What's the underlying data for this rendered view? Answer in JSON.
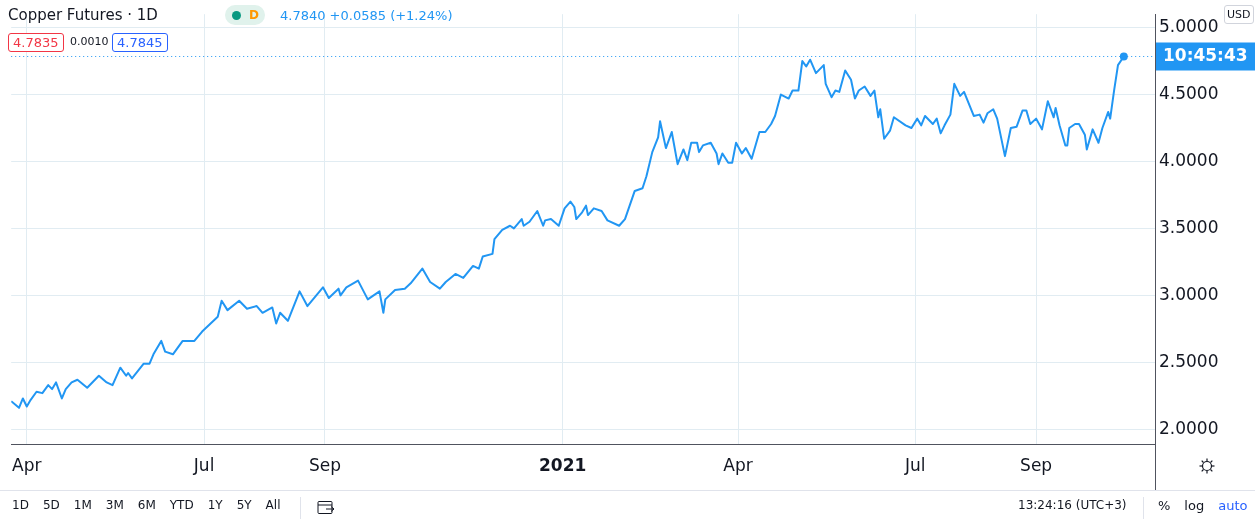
{
  "chart_data": {
    "type": "line",
    "title": "Copper Futures · 1D",
    "annotations": [
      "D",
      "4.7840 +0.0585 (+1.24%)",
      "4.7835",
      "0.0010",
      "4.7845",
      "USD",
      "13:24:16 (UTC+3)",
      "1D",
      "5D",
      "1M",
      "3M",
      "6M",
      "YTD",
      "1Y",
      "5Y",
      "All",
      "%",
      "log",
      "auto",
      "10:45:43"
    ],
    "xlim": [
      "2020-03-24",
      "2021-11-01"
    ],
    "xticks": [
      {
        "value": "2020-04-01",
        "label": "Apr"
      },
      {
        "value": "2020-07-01",
        "label": "Jul"
      },
      {
        "value": "2020-09-01",
        "label": "Sep"
      },
      {
        "value": "2021-01-01",
        "label": "2021"
      },
      {
        "value": "2021-04-01",
        "label": "Apr"
      },
      {
        "value": "2021-07-01",
        "label": "Jul"
      },
      {
        "value": "2021-09-01",
        "label": "Sep"
      }
    ],
    "ylim": [
      1.89,
      5.1
    ],
    "yticks": [
      {
        "value": 2,
        "label": "2.0000"
      },
      {
        "value": 2.5,
        "label": "2.5000"
      },
      {
        "value": 3,
        "label": "3.0000"
      },
      {
        "value": 3.5,
        "label": "3.5000"
      },
      {
        "value": 4,
        "label": "4.0000"
      },
      {
        "value": 4.5,
        "label": "4.5000"
      },
      {
        "value": 5,
        "label": "5.0000"
      }
    ],
    "grid": true,
    "legend": false,
    "marker": "none",
    "line_style": "solid",
    "ref_lines": [
      {
        "axis": "y",
        "value": 4.784,
        "color": "#2196f3",
        "line_style": "dotted"
      }
    ],
    "series": [
      {
        "color": "#2196f3",
        "x": [
          "2020-03-24",
          "2020-03-28",
          "2020-03-30",
          "2020-04-01",
          "2020-04-03",
          "2020-04-06",
          "2020-04-09",
          "2020-04-12",
          "2020-04-14",
          "2020-04-16",
          "2020-04-19",
          "2020-04-21",
          "2020-04-24",
          "2020-04-27",
          "2020-05-02",
          "2020-05-08",
          "2020-05-12",
          "2020-05-15",
          "2020-05-19",
          "2020-05-22",
          "2020-05-23",
          "2020-05-25",
          "2020-05-31",
          "2020-06-03",
          "2020-06-05",
          "2020-06-09",
          "2020-06-11",
          "2020-06-15",
          "2020-06-20",
          "2020-06-26",
          "2020-06-30",
          "2020-07-08",
          "2020-07-10",
          "2020-07-13",
          "2020-07-19",
          "2020-07-23",
          "2020-07-28",
          "2020-07-31",
          "2020-08-05",
          "2020-08-07",
          "2020-08-09",
          "2020-08-13",
          "2020-08-19",
          "2020-08-23",
          "2020-08-31",
          "2020-09-03",
          "2020-09-08",
          "2020-09-09",
          "2020-09-12",
          "2020-09-18",
          "2020-09-23",
          "2020-09-29",
          "2020-10-01",
          "2020-10-02",
          "2020-10-07",
          "2020-10-12",
          "2020-10-15",
          "2020-10-21",
          "2020-10-25",
          "2020-10-30",
          "2020-11-02",
          "2020-11-07",
          "2020-11-11",
          "2020-11-16",
          "2020-11-19",
          "2020-11-21",
          "2020-11-26",
          "2020-11-27",
          "2020-12-01",
          "2020-12-05",
          "2020-12-07",
          "2020-12-11",
          "2020-12-12",
          "2020-12-15",
          "2020-12-19",
          "2020-12-22",
          "2020-12-23",
          "2020-12-26",
          "2020-12-30",
          "2021-01-02",
          "2021-01-05",
          "2021-01-07",
          "2021-01-08",
          "2021-01-11",
          "2021-01-13",
          "2021-01-14",
          "2021-01-17",
          "2021-01-21",
          "2021-01-24",
          "2021-01-30",
          "2021-02-02",
          "2021-02-07",
          "2021-02-11",
          "2021-02-13",
          "2021-02-16",
          "2021-02-19",
          "2021-02-20",
          "2021-02-23",
          "2021-02-26",
          "2021-03-01",
          "2021-03-04",
          "2021-03-06",
          "2021-03-08",
          "2021-03-11",
          "2021-03-12",
          "2021-03-14",
          "2021-03-18",
          "2021-03-21",
          "2021-03-22",
          "2021-03-24",
          "2021-03-27",
          "2021-03-29",
          "2021-03-31",
          "2021-04-03",
          "2021-04-05",
          "2021-04-08",
          "2021-04-12",
          "2021-04-15",
          "2021-04-18",
          "2021-04-20",
          "2021-04-23",
          "2021-04-27",
          "2021-04-29",
          "2021-05-02",
          "2021-05-04",
          "2021-05-06",
          "2021-05-08",
          "2021-05-11",
          "2021-05-15",
          "2021-05-16",
          "2021-05-19",
          "2021-05-21",
          "2021-05-23",
          "2021-05-26",
          "2021-05-29",
          "2021-05-31",
          "2021-06-02",
          "2021-06-05",
          "2021-06-08",
          "2021-06-10",
          "2021-06-12",
          "2021-06-13",
          "2021-06-15",
          "2021-06-18",
          "2021-06-20",
          "2021-06-26",
          "2021-06-29",
          "2021-07-02",
          "2021-07-04",
          "2021-07-06",
          "2021-07-10",
          "2021-07-12",
          "2021-07-14",
          "2021-07-16",
          "2021-07-19",
          "2021-07-21",
          "2021-07-24",
          "2021-07-26",
          "2021-07-31",
          "2021-08-03",
          "2021-08-05",
          "2021-08-07",
          "2021-08-10",
          "2021-08-12",
          "2021-08-16",
          "2021-08-19",
          "2021-08-22",
          "2021-08-25",
          "2021-08-27",
          "2021-08-29",
          "2021-09-01",
          "2021-09-04",
          "2021-09-07",
          "2021-09-10",
          "2021-09-11",
          "2021-09-13",
          "2021-09-16",
          "2021-09-17",
          "2021-09-18",
          "2021-09-21",
          "2021-09-23",
          "2021-09-26",
          "2021-09-27",
          "2021-09-30",
          "2021-10-03",
          "2021-10-05",
          "2021-10-08",
          "2021-10-09",
          "2021-10-11",
          "2021-10-13",
          "2021-10-16"
        ],
        "values": [
          2.21,
          2.16,
          2.23,
          2.17,
          2.22,
          2.28,
          2.27,
          2.33,
          2.3,
          2.35,
          2.23,
          2.3,
          2.35,
          2.37,
          2.31,
          2.4,
          2.35,
          2.33,
          2.46,
          2.4,
          2.42,
          2.38,
          2.49,
          2.49,
          2.56,
          2.66,
          2.58,
          2.56,
          2.66,
          2.66,
          2.73,
          2.84,
          2.96,
          2.89,
          2.96,
          2.9,
          2.92,
          2.87,
          2.91,
          2.79,
          2.87,
          2.81,
          3.03,
          2.92,
          3.06,
          2.98,
          3.05,
          3.0,
          3.06,
          3.11,
          2.97,
          3.03,
          2.87,
          2.97,
          3.04,
          3.05,
          3.09,
          3.2,
          3.1,
          3.05,
          3.1,
          3.16,
          3.13,
          3.22,
          3.2,
          3.29,
          3.31,
          3.42,
          3.49,
          3.52,
          3.5,
          3.57,
          3.52,
          3.55,
          3.63,
          3.52,
          3.56,
          3.57,
          3.52,
          3.65,
          3.7,
          3.66,
          3.57,
          3.62,
          3.67,
          3.6,
          3.65,
          3.63,
          3.56,
          3.52,
          3.57,
          3.78,
          3.8,
          3.89,
          4.07,
          4.18,
          4.3,
          4.1,
          4.22,
          3.98,
          4.09,
          4.01,
          4.14,
          4.14,
          4.07,
          4.12,
          4.14,
          4.06,
          3.98,
          4.06,
          3.99,
          3.99,
          4.14,
          4.06,
          4.1,
          4.02,
          4.22,
          4.22,
          4.28,
          4.34,
          4.5,
          4.47,
          4.53,
          4.53,
          4.75,
          4.71,
          4.76,
          4.66,
          4.72,
          4.58,
          4.48,
          4.53,
          4.52,
          4.68,
          4.61,
          4.47,
          4.53,
          4.56,
          4.49,
          4.53,
          4.33,
          4.39,
          4.17,
          4.23,
          4.33,
          4.27,
          4.25,
          4.32,
          4.27,
          4.34,
          4.28,
          4.32,
          4.21,
          4.27,
          4.35,
          4.58,
          4.49,
          4.52,
          4.34,
          4.35,
          4.29,
          4.36,
          4.39,
          4.32,
          4.04,
          4.25,
          4.26,
          4.38,
          4.38,
          4.28,
          4.32,
          4.24,
          4.45,
          4.33,
          4.4,
          4.27,
          4.12,
          4.12,
          4.25,
          4.28,
          4.28,
          4.2,
          4.09,
          4.24,
          4.14,
          4.25,
          4.37,
          4.32,
          4.53,
          4.72,
          4.784
        ]
      }
    ]
  }
}
